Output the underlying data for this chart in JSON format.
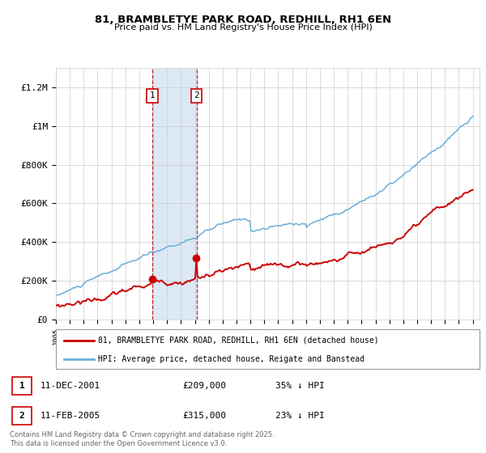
{
  "title1": "81, BRAMBLETYE PARK ROAD, REDHILL, RH1 6EN",
  "title2": "Price paid vs. HM Land Registry's House Price Index (HPI)",
  "ylim": [
    0,
    1300000
  ],
  "yticks": [
    0,
    200000,
    400000,
    600000,
    800000,
    1000000,
    1200000
  ],
  "ytick_labels": [
    "£0",
    "£200K",
    "£400K",
    "£600K",
    "£800K",
    "£1M",
    "£1.2M"
  ],
  "hpi_color": "#6baed6",
  "price_color": "#cc0000",
  "purchase1_date_num": 2001.94,
  "purchase1_price": 209000,
  "purchase1_label": "1",
  "purchase2_date_num": 2005.12,
  "purchase2_price": 315000,
  "purchase2_label": "2",
  "legend1_label": "81, BRAMBLETYE PARK ROAD, REDHILL, RH1 6EN (detached house)",
  "legend2_label": "HPI: Average price, detached house, Reigate and Banstead",
  "table_row1": [
    "1",
    "11-DEC-2001",
    "£209,000",
    "35% ↓ HPI"
  ],
  "table_row2": [
    "2",
    "11-FEB-2005",
    "£315,000",
    "23% ↓ HPI"
  ],
  "footnote": "Contains HM Land Registry data © Crown copyright and database right 2025.\nThis data is licensed under the Open Government Licence v3.0.",
  "background_color": "#ffffff",
  "grid_color": "#cccccc",
  "highlight_color": "#dce9f5"
}
